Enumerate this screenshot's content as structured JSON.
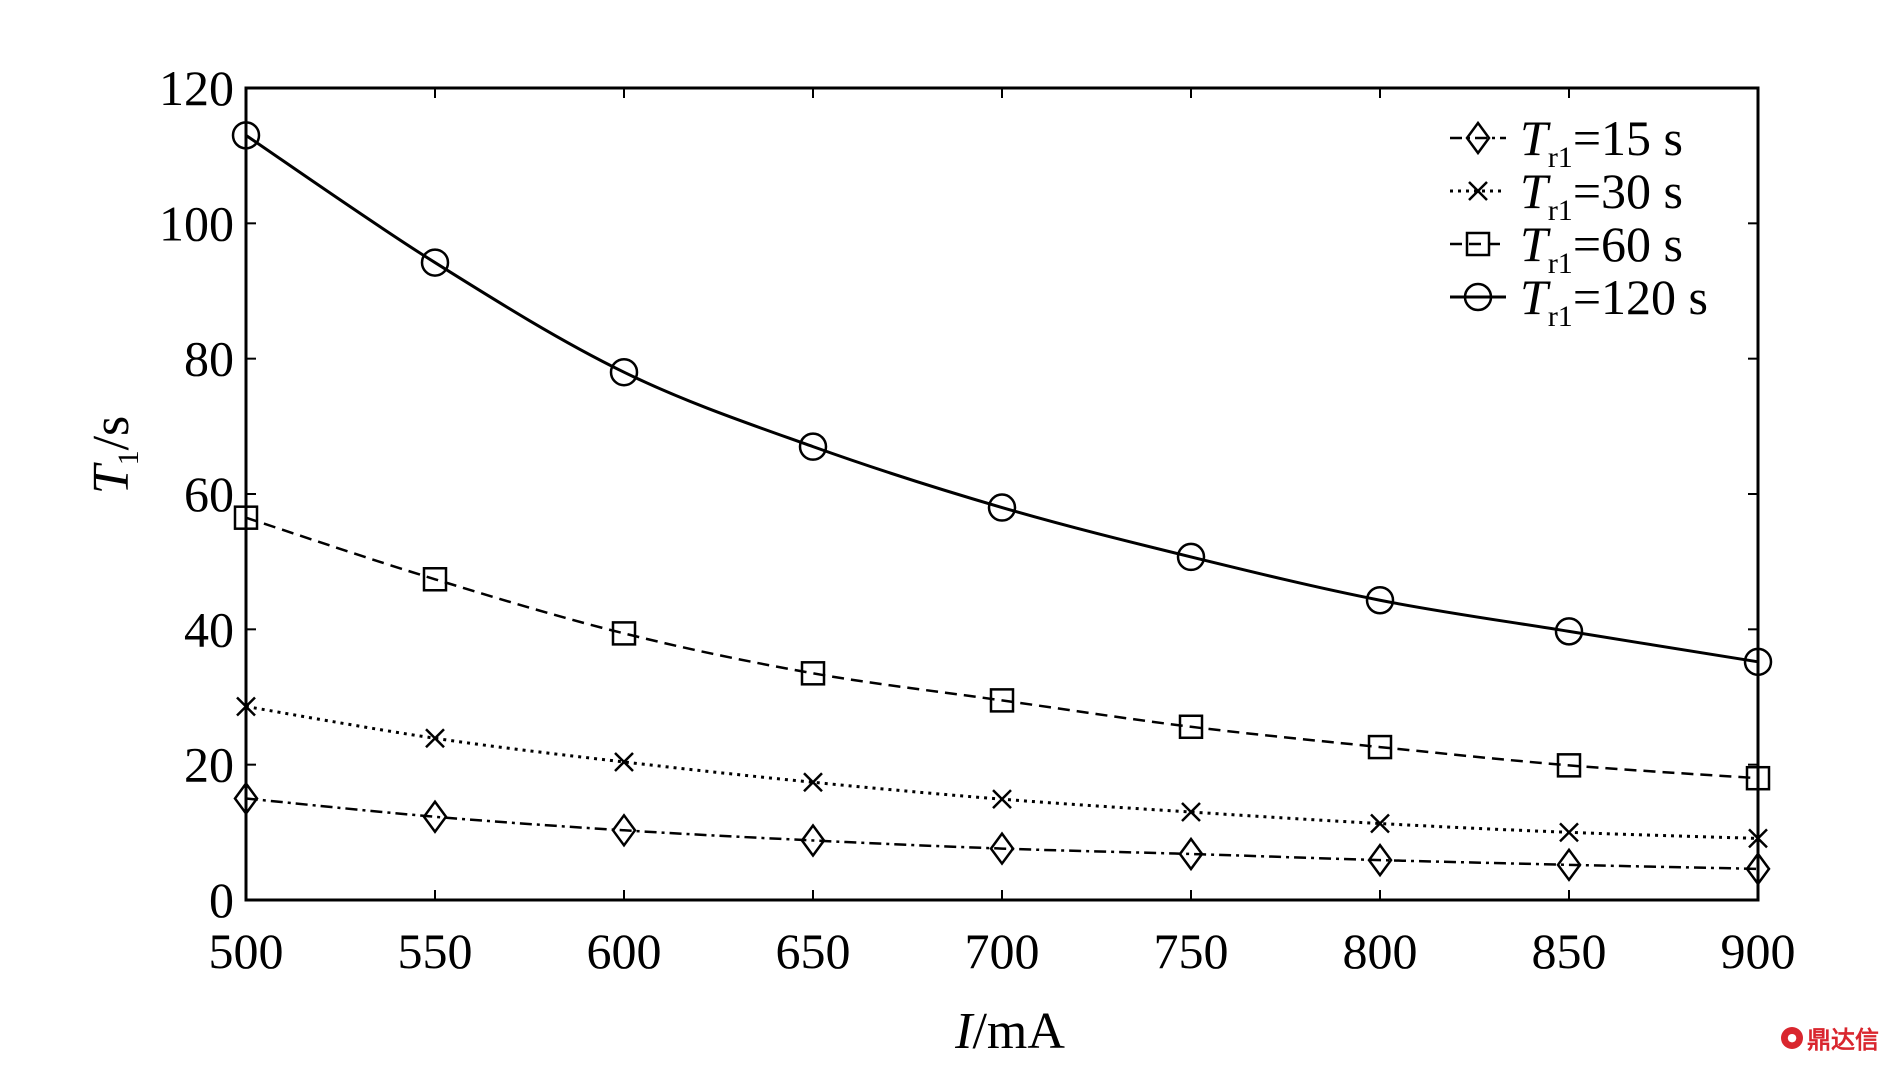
{
  "chart_data": {
    "type": "line",
    "xlabel": {
      "main": "I",
      "rest": "/mA"
    },
    "ylabel": {
      "main": "T",
      "sub": "1",
      "rest": "/s"
    },
    "xlim": [
      500,
      900
    ],
    "ylim": [
      0,
      120
    ],
    "x_ticks": [
      500,
      550,
      600,
      650,
      700,
      750,
      800,
      850,
      900
    ],
    "y_ticks": [
      0,
      20,
      40,
      60,
      80,
      100,
      120
    ],
    "x": [
      500,
      550,
      600,
      650,
      700,
      750,
      800,
      850,
      900
    ],
    "grid": false,
    "legend_position": "top-right",
    "series": [
      {
        "name": "Tr1=15 s",
        "legend": {
          "main": "T",
          "sub": "r1",
          "rest": "=15 s"
        },
        "marker": "diamond",
        "dash": "dashdot",
        "values": [
          15.0,
          12.3,
          10.3,
          8.8,
          7.6,
          6.8,
          5.9,
          5.2,
          4.6
        ]
      },
      {
        "name": "Tr1=30 s",
        "legend": {
          "main": "T",
          "sub": "r1",
          "rest": "=30 s"
        },
        "marker": "x",
        "dash": "dotted",
        "values": [
          28.6,
          23.9,
          20.4,
          17.4,
          14.9,
          13.0,
          11.3,
          10.0,
          9.1
        ]
      },
      {
        "name": "Tr1=60 s",
        "legend": {
          "main": "T",
          "sub": "r1",
          "rest": "=60 s"
        },
        "marker": "square",
        "dash": "dashed",
        "values": [
          56.5,
          47.4,
          39.4,
          33.5,
          29.5,
          25.6,
          22.6,
          19.9,
          18.0
        ]
      },
      {
        "name": "Tr1=120 s",
        "legend": {
          "main": "T",
          "sub": "r1",
          "rest": "=120 s"
        },
        "marker": "circle",
        "dash": "solid",
        "values": [
          113.0,
          94.2,
          78.0,
          67.0,
          58.0,
          50.7,
          44.3,
          39.7,
          35.2
        ]
      }
    ]
  },
  "watermark": {
    "icon": "chat-bubble-icon",
    "text": "鼎达信"
  }
}
